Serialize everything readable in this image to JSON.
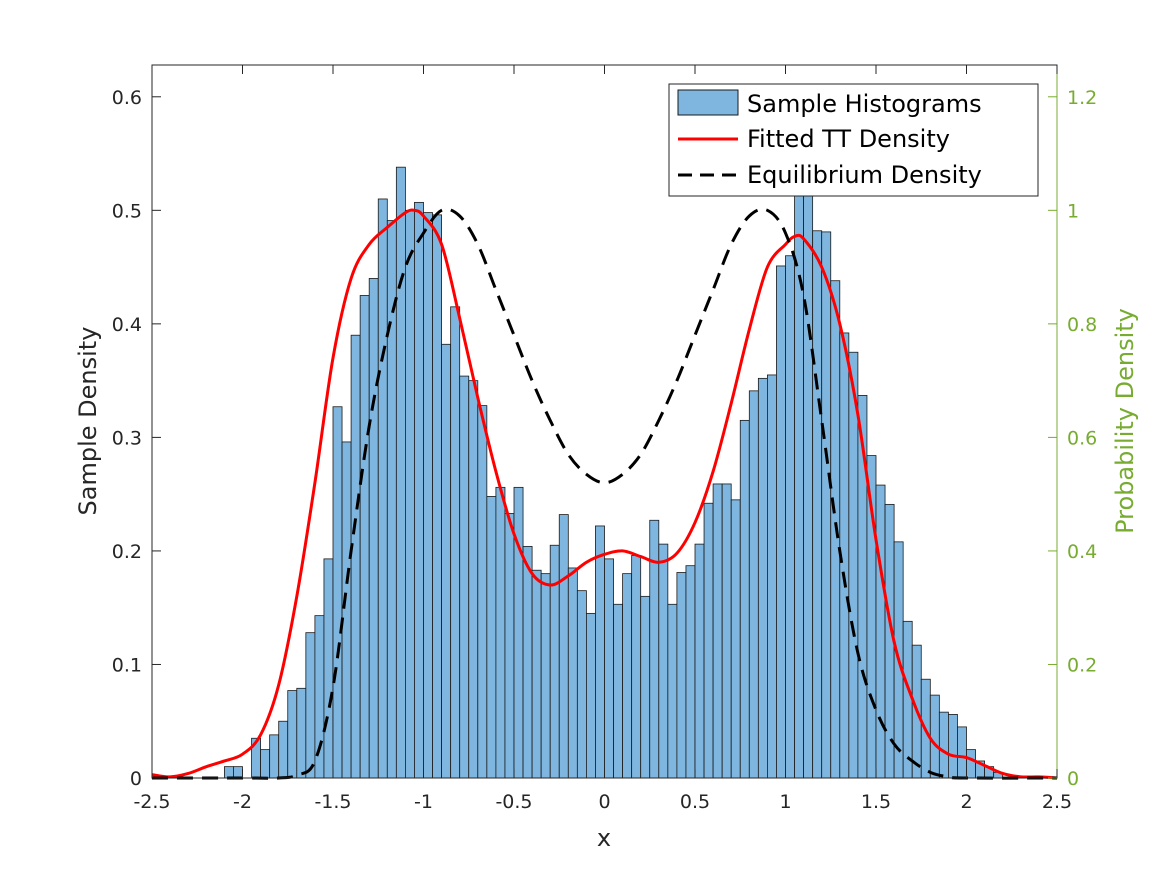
{
  "chart_data": {
    "type": "bar",
    "xlabel": "x",
    "ylabel": "Sample Density",
    "y2label": "Probability Density",
    "xlim": [
      -2.5,
      2.5
    ],
    "ylim": [
      0,
      0.628
    ],
    "y2lim": [
      0,
      1.256
    ],
    "xticks": [
      -2.5,
      -2,
      -1.5,
      -1,
      -0.5,
      0,
      0.5,
      1,
      1.5,
      2,
      2.5
    ],
    "yticks": [
      0,
      0.1,
      0.2,
      0.3,
      0.4,
      0.5,
      0.6
    ],
    "y2ticks": [
      0,
      0.2,
      0.4,
      0.6,
      0.8,
      1,
      1.2
    ],
    "legend_position": "top-right",
    "colors": {
      "bar_fill": "#7eb6df",
      "bar_edge": "#1a1a1a",
      "fitted": "#ff0000",
      "equilibrium": "#000000",
      "right_axis": "#77ac30"
    },
    "histogram": {
      "name": "Sample Histograms",
      "bin_width": 0.05,
      "bins": [
        [
          -2.1,
          0.01
        ],
        [
          -2.05,
          0.01
        ],
        [
          -2.0,
          0.0
        ],
        [
          -1.95,
          0.035
        ],
        [
          -1.9,
          0.025
        ],
        [
          -1.85,
          0.038
        ],
        [
          -1.8,
          0.05
        ],
        [
          -1.75,
          0.077
        ],
        [
          -1.7,
          0.079
        ],
        [
          -1.65,
          0.128
        ],
        [
          -1.6,
          0.143
        ],
        [
          -1.55,
          0.193
        ],
        [
          -1.5,
          0.327
        ],
        [
          -1.45,
          0.296
        ],
        [
          -1.4,
          0.39
        ],
        [
          -1.35,
          0.425
        ],
        [
          -1.3,
          0.44
        ],
        [
          -1.25,
          0.51
        ],
        [
          -1.2,
          0.491
        ],
        [
          -1.15,
          0.538
        ],
        [
          -1.1,
          0.5
        ],
        [
          -1.05,
          0.507
        ],
        [
          -1.0,
          0.498
        ],
        [
          -0.95,
          0.496
        ],
        [
          -0.9,
          0.382
        ],
        [
          -0.85,
          0.415
        ],
        [
          -0.8,
          0.354
        ],
        [
          -0.75,
          0.35
        ],
        [
          -0.7,
          0.328
        ],
        [
          -0.65,
          0.248
        ],
        [
          -0.6,
          0.256
        ],
        [
          -0.55,
          0.233
        ],
        [
          -0.5,
          0.256
        ],
        [
          -0.45,
          0.204
        ],
        [
          -0.4,
          0.183
        ],
        [
          -0.35,
          0.18
        ],
        [
          -0.3,
          0.205
        ],
        [
          -0.25,
          0.232
        ],
        [
          -0.2,
          0.185
        ],
        [
          -0.15,
          0.165
        ],
        [
          -0.1,
          0.145
        ],
        [
          -0.05,
          0.222
        ],
        [
          0.0,
          0.193
        ],
        [
          0.05,
          0.153
        ],
        [
          0.1,
          0.18
        ],
        [
          0.15,
          0.196
        ],
        [
          0.2,
          0.16
        ],
        [
          0.25,
          0.227
        ],
        [
          0.3,
          0.206
        ],
        [
          0.35,
          0.153
        ],
        [
          0.4,
          0.181
        ],
        [
          0.45,
          0.187
        ],
        [
          0.5,
          0.206
        ],
        [
          0.55,
          0.242
        ],
        [
          0.6,
          0.259
        ],
        [
          0.65,
          0.259
        ],
        [
          0.7,
          0.245
        ],
        [
          0.75,
          0.315
        ],
        [
          0.8,
          0.341
        ],
        [
          0.85,
          0.352
        ],
        [
          0.9,
          0.355
        ],
        [
          0.95,
          0.451
        ],
        [
          1.0,
          0.46
        ],
        [
          1.05,
          0.551
        ],
        [
          1.1,
          0.548
        ],
        [
          1.15,
          0.482
        ],
        [
          1.2,
          0.481
        ],
        [
          1.25,
          0.438
        ],
        [
          1.3,
          0.392
        ],
        [
          1.35,
          0.375
        ],
        [
          1.4,
          0.337
        ],
        [
          1.45,
          0.284
        ],
        [
          1.5,
          0.258
        ],
        [
          1.55,
          0.241
        ],
        [
          1.6,
          0.208
        ],
        [
          1.65,
          0.138
        ],
        [
          1.7,
          0.117
        ],
        [
          1.75,
          0.087
        ],
        [
          1.8,
          0.073
        ],
        [
          1.85,
          0.058
        ],
        [
          1.9,
          0.056
        ],
        [
          1.95,
          0.045
        ],
        [
          2.0,
          0.025
        ],
        [
          2.05,
          0.015
        ],
        [
          2.1,
          0.01
        ],
        [
          2.15,
          0.005
        ]
      ]
    },
    "series": [
      {
        "name": "Fitted TT Density",
        "axis": "left",
        "style": "solid",
        "points": [
          [
            -2.5,
            0.003
          ],
          [
            -2.4,
            0.001
          ],
          [
            -2.3,
            0.004
          ],
          [
            -2.2,
            0.01
          ],
          [
            -2.1,
            0.015
          ],
          [
            -2.0,
            0.021
          ],
          [
            -1.9,
            0.038
          ],
          [
            -1.8,
            0.082
          ],
          [
            -1.7,
            0.16
          ],
          [
            -1.6,
            0.26
          ],
          [
            -1.5,
            0.37
          ],
          [
            -1.4,
            0.44
          ],
          [
            -1.3,
            0.47
          ],
          [
            -1.2,
            0.485
          ],
          [
            -1.1,
            0.498
          ],
          [
            -1.05,
            0.5
          ],
          [
            -1.0,
            0.495
          ],
          [
            -0.9,
            0.47
          ],
          [
            -0.8,
            0.405
          ],
          [
            -0.7,
            0.335
          ],
          [
            -0.6,
            0.27
          ],
          [
            -0.5,
            0.215
          ],
          [
            -0.4,
            0.18
          ],
          [
            -0.3,
            0.17
          ],
          [
            -0.2,
            0.178
          ],
          [
            -0.1,
            0.19
          ],
          [
            0.0,
            0.197
          ],
          [
            0.1,
            0.2
          ],
          [
            0.2,
            0.195
          ],
          [
            0.3,
            0.19
          ],
          [
            0.4,
            0.198
          ],
          [
            0.5,
            0.225
          ],
          [
            0.6,
            0.27
          ],
          [
            0.7,
            0.33
          ],
          [
            0.8,
            0.395
          ],
          [
            0.9,
            0.45
          ],
          [
            1.0,
            0.47
          ],
          [
            1.05,
            0.477
          ],
          [
            1.1,
            0.475
          ],
          [
            1.2,
            0.45
          ],
          [
            1.3,
            0.4
          ],
          [
            1.4,
            0.32
          ],
          [
            1.5,
            0.21
          ],
          [
            1.6,
            0.12
          ],
          [
            1.7,
            0.07
          ],
          [
            1.8,
            0.035
          ],
          [
            1.9,
            0.021
          ],
          [
            2.0,
            0.018
          ],
          [
            2.1,
            0.011
          ],
          [
            2.2,
            0.004
          ],
          [
            2.3,
            0.001
          ],
          [
            2.4,
            0.001
          ],
          [
            2.5,
            0.0
          ]
        ]
      },
      {
        "name": "Equilibrium Density",
        "axis": "right",
        "style": "dashed",
        "points": [
          [
            -2.5,
            0.0
          ],
          [
            -2.0,
            0.0
          ],
          [
            -1.8,
            0.0
          ],
          [
            -1.7,
            0.005
          ],
          [
            -1.6,
            0.03
          ],
          [
            -1.5,
            0.16
          ],
          [
            -1.4,
            0.4
          ],
          [
            -1.3,
            0.62
          ],
          [
            -1.2,
            0.78
          ],
          [
            -1.1,
            0.9
          ],
          [
            -1.0,
            0.96
          ],
          [
            -0.9,
            1.0
          ],
          [
            -0.8,
            0.99
          ],
          [
            -0.7,
            0.94
          ],
          [
            -0.6,
            0.86
          ],
          [
            -0.5,
            0.78
          ],
          [
            -0.4,
            0.7
          ],
          [
            -0.3,
            0.63
          ],
          [
            -0.2,
            0.57
          ],
          [
            -0.1,
            0.535
          ],
          [
            0.0,
            0.52
          ],
          [
            0.1,
            0.535
          ],
          [
            0.2,
            0.57
          ],
          [
            0.3,
            0.63
          ],
          [
            0.4,
            0.7
          ],
          [
            0.5,
            0.78
          ],
          [
            0.6,
            0.86
          ],
          [
            0.7,
            0.94
          ],
          [
            0.8,
            0.99
          ],
          [
            0.9,
            1.0
          ],
          [
            1.0,
            0.96
          ],
          [
            1.1,
            0.85
          ],
          [
            1.2,
            0.63
          ],
          [
            1.3,
            0.4
          ],
          [
            1.4,
            0.22
          ],
          [
            1.5,
            0.12
          ],
          [
            1.6,
            0.06
          ],
          [
            1.7,
            0.03
          ],
          [
            1.8,
            0.01
          ],
          [
            1.9,
            0.002
          ],
          [
            2.0,
            0.0
          ],
          [
            2.5,
            0.0
          ]
        ]
      }
    ]
  }
}
